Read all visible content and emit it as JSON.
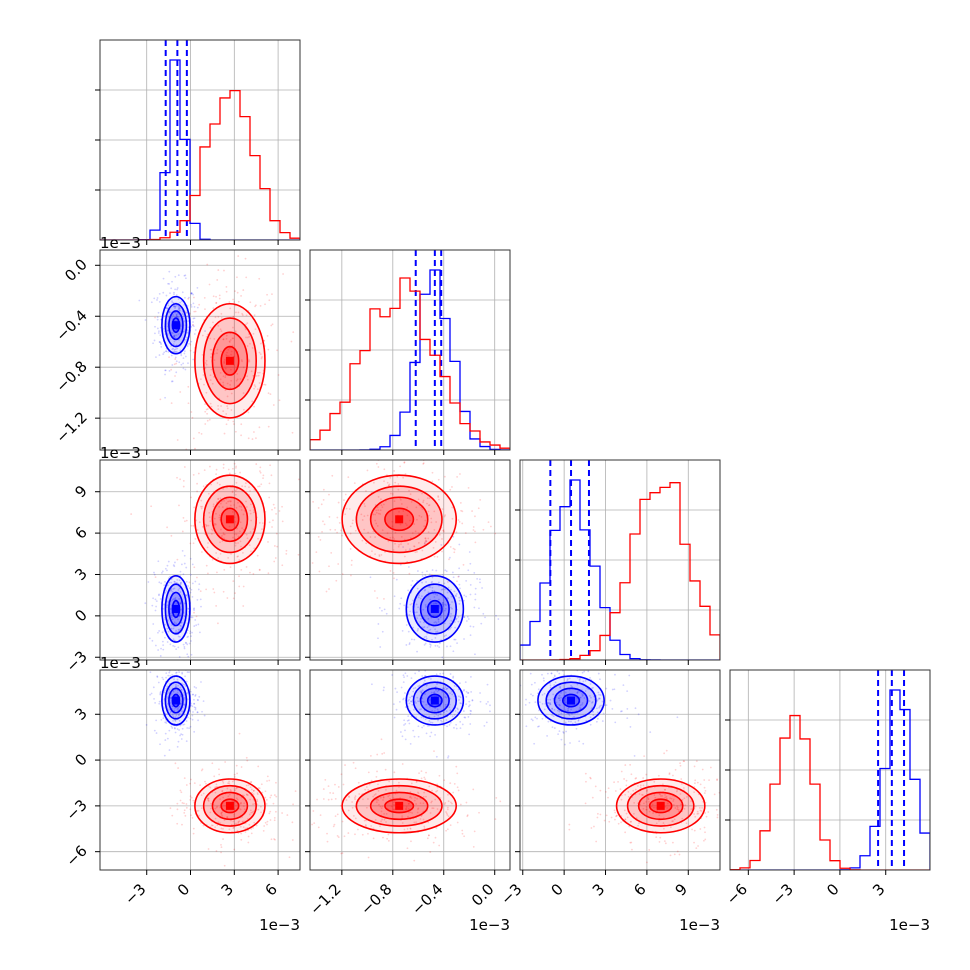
{
  "chart_data": {
    "type": "corner",
    "title": "",
    "variables": [
      {
        "ticks": [
          -3,
          0,
          3,
          6
        ],
        "tick_labels": [
          "−3",
          "0",
          "3",
          "6"
        ],
        "offset_label": "1e−3"
      },
      {
        "ticks": [
          -1.2,
          -0.8,
          -0.4,
          0.0
        ],
        "tick_labels": [
          "−1.2",
          "−0.8",
          "−0.4",
          "0.0"
        ],
        "offset_label": "1e−3"
      },
      {
        "ticks": [
          -3,
          0,
          3,
          6,
          9
        ],
        "tick_labels": [
          "−3",
          "0",
          "3",
          "6",
          "9"
        ],
        "offset_label": "1e−3"
      },
      {
        "ticks": [
          -6,
          -3,
          0,
          3
        ],
        "tick_labels": [
          "−6",
          "−3",
          "0",
          "3"
        ],
        "offset_label": "1e−3"
      }
    ],
    "axis_ranges": [
      [
        -6.2,
        7.5
      ],
      [
        -1.45,
        0.12
      ],
      [
        -3.2,
        11.3
      ],
      [
        -7.2,
        5.9
      ]
    ],
    "grid": true,
    "series": [
      {
        "color": "#0000ff",
        "means": [
          -1.0,
          -0.47,
          0.5,
          3.9
        ],
        "quantiles": [
          [
            -1.7,
            -0.9,
            -0.25
          ],
          [
            -0.62,
            -0.47,
            -0.42
          ],
          [
            -1.0,
            0.5,
            1.8
          ],
          [
            2.5,
            3.4,
            4.2
          ]
        ],
        "sigmas": [
          0.6,
          0.14,
          1.5,
          1.0
        ]
      },
      {
        "color": "#ff0000",
        "means": [
          2.7,
          -0.75,
          7.0,
          -3.0
        ],
        "sigmas": [
          1.5,
          0.28,
          2.0,
          1.1
        ]
      }
    ],
    "quantile_line_style": "dashed",
    "contour_levels": 4
  }
}
